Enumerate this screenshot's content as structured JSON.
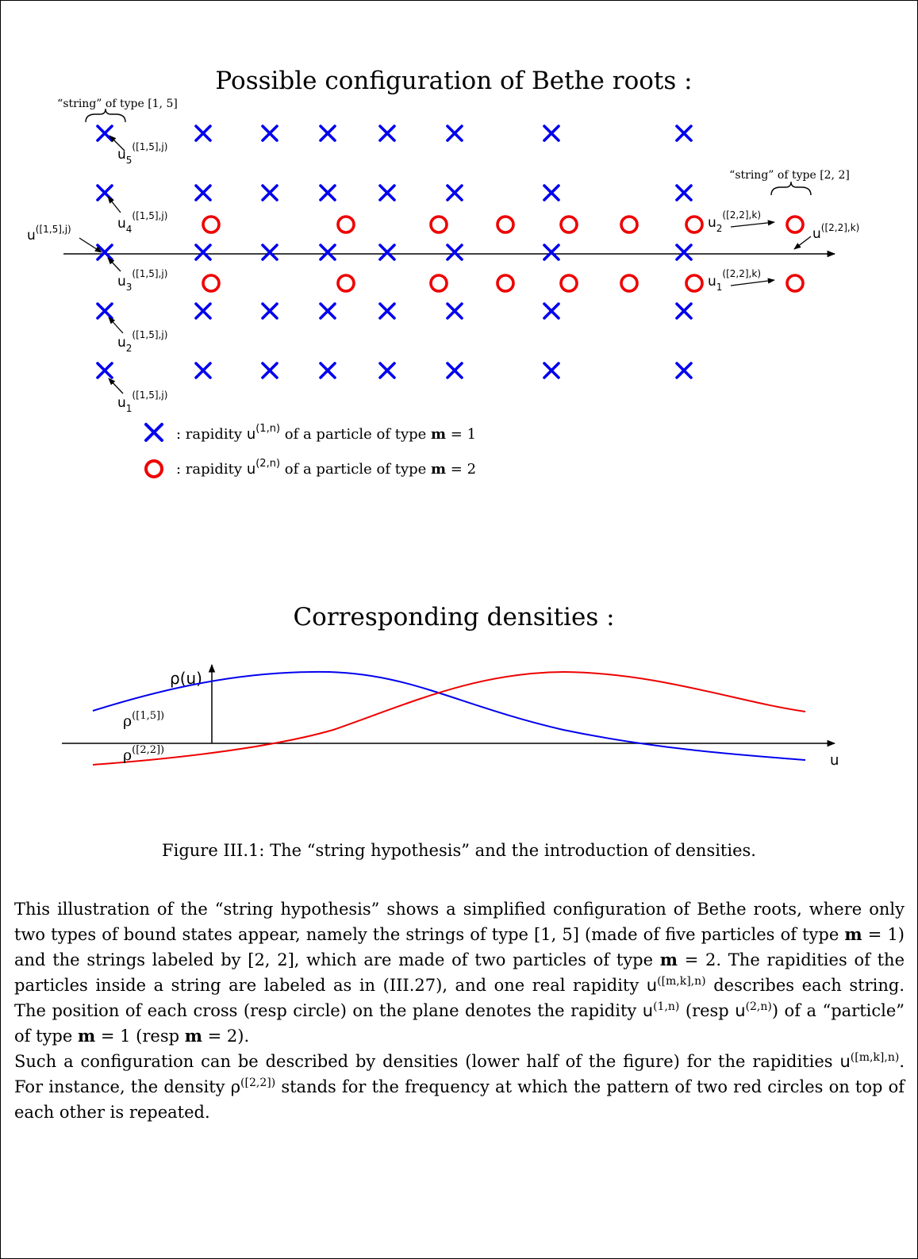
{
  "figure": {
    "top_title": "Possible configuration of Bethe roots :",
    "bottom_title": "Corresponding densities :",
    "string15_label": "“string” of type [1, 5]",
    "string22_label": "“string” of type [2, 2]",
    "root_label_base": "u",
    "label_15": "([1,5],j)",
    "label_22": "([2,2],k)",
    "sub_labels": [
      "5",
      "4",
      "3",
      "2",
      "1"
    ],
    "sub_22": [
      "2",
      "1"
    ],
    "legend_cross_prefix": ": rapidity ",
    "legend_cross_sup": "(1,n)",
    "legend_cross_suffix": " of a particle of type ",
    "legend_m_bold": "m",
    "legend_cross_eq": " = 1",
    "legend_circle_sup": "(2,n)",
    "legend_circle_eq": " = 2",
    "density_axis_label": "ρ(u)",
    "density_x_label": "u",
    "rho_blue_label": "ρ",
    "rho_blue_sup": "([1,5])",
    "rho_red_label": "ρ",
    "rho_red_sup": "([2,2])",
    "colors": {
      "cross": "#0000ee",
      "circle": "#ee0000",
      "axis": "#000000"
    }
  },
  "caption": "Figure III.1: The “string hypothesis” and the introduction of densities.",
  "body": {
    "p1_a": "This illustration of the “string hypothesis” shows a simplified configuration of Bethe roots, where only two types of bound states appear, namely the strings of type [1, 5] (made of five particles of type ",
    "p1_b": " = 1) and the strings labeled by [2, 2], which are made of two particles of type ",
    "p1_c": " = 2. The rapidities of the particles inside a string are labeled as in (III.27), and one real rapidity ",
    "p1_d": " describes each string. The position of each cross (resp circle) on the plane denotes the rapidity ",
    "p1_e": " (resp ",
    "p1_f": ") of a “particle” of type ",
    "p1_g": " = 1 (resp ",
    "p1_h": " = 2).",
    "p2_a": "Such a configuration can be described by densities (lower half of the figure) for the rapidities ",
    "p2_b": ". For instance, the density ",
    "p2_c": " stands for the frequency at which the pattern of two red circles on top of each other is repeated.",
    "m": "m",
    "u": "u",
    "rho": "ρ",
    "sup_mkn": "([m,k],n)",
    "sup_1n": "(1,n)",
    "sup_2n": "(2,n)",
    "sup_22": "([2,2])"
  }
}
